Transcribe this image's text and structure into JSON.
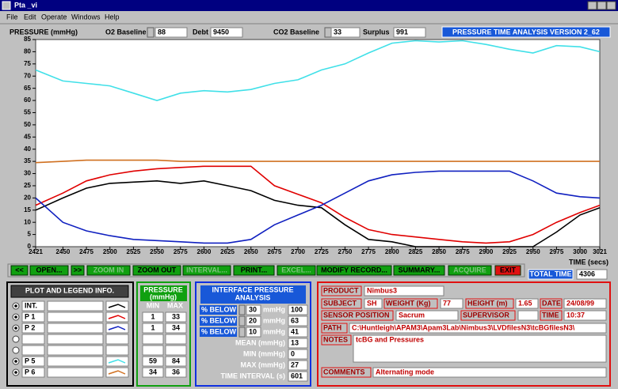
{
  "window_title": "Pta _vi",
  "menu": [
    "File",
    "Edit",
    "Operate",
    "Windows",
    "Help"
  ],
  "header": {
    "fields": [
      {
        "label": "O2 Baseline",
        "value": 88
      },
      {
        "label": "Debt",
        "value": 9450
      },
      {
        "label": "CO2 Baseline",
        "value": 33
      },
      {
        "label": "Surplus",
        "value": 991
      }
    ],
    "version": "PRESSURE TIME ANALYSIS VERSION 2_62"
  },
  "chart_data": {
    "type": "line",
    "y_label": "PRESSURE (mmHg)",
    "x_label": "TIME (secs)",
    "x": [
      2421,
      2450,
      2475,
      2500,
      2525,
      2550,
      2575,
      2600,
      2625,
      2650,
      2675,
      2700,
      2725,
      2750,
      2775,
      2800,
      2825,
      2850,
      2875,
      2900,
      2925,
      2950,
      2975,
      3000,
      3021
    ],
    "xlim": [
      2421,
      3021
    ],
    "ylim": [
      0,
      85
    ],
    "xticks": [
      2421,
      2450,
      2475,
      2500,
      2525,
      2550,
      2575,
      2600,
      2625,
      2650,
      2675,
      2700,
      2725,
      2750,
      2775,
      2800,
      2825,
      2850,
      2875,
      2900,
      2925,
      2950,
      2975,
      3000,
      3021
    ],
    "yticks": [
      0,
      5,
      10,
      15,
      20,
      25,
      30,
      35,
      40,
      45,
      50,
      55,
      60,
      65,
      70,
      75,
      80,
      85
    ],
    "grid": false,
    "series": [
      {
        "name": "INT.",
        "color": "#000000",
        "values": [
          15,
          20,
          24,
          26,
          26.5,
          27,
          26,
          27,
          25,
          23,
          19,
          17,
          16,
          9,
          3,
          2,
          0,
          0,
          0,
          0,
          0,
          0,
          6,
          13,
          16
        ]
      },
      {
        "name": "P 1",
        "color": "#e00000",
        "min": 1,
        "max": 33,
        "values": [
          17,
          22,
          27,
          29.5,
          31,
          32,
          32.5,
          33,
          33,
          33,
          25,
          21.5,
          18,
          12,
          7,
          5,
          4,
          3,
          2,
          1.5,
          2,
          5,
          10,
          14,
          17
        ]
      },
      {
        "name": "P 2",
        "color": "#1020c0",
        "min": 1,
        "max": 34,
        "values": [
          20,
          10,
          6.5,
          4.5,
          3,
          2.5,
          2,
          1.5,
          1.5,
          3,
          9,
          13,
          17,
          22,
          27,
          29.5,
          30.5,
          31,
          31,
          31,
          31,
          27,
          22,
          20.5,
          20
        ]
      },
      {
        "name": "P 5",
        "color": "#40e0e8",
        "min": 59,
        "max": 84,
        "values": [
          72.5,
          68,
          67,
          66,
          63,
          60,
          63,
          64,
          63.5,
          64.5,
          67,
          68.5,
          72.5,
          75,
          79.5,
          83.5,
          84.5,
          84,
          84.5,
          83,
          81,
          79.5,
          82.5,
          82,
          80
        ]
      },
      {
        "name": "P 6",
        "color": "#d07020",
        "min": 34,
        "max": 36,
        "values": [
          34.5,
          35,
          35.5,
          35.5,
          35.5,
          35.5,
          35,
          35,
          35,
          35,
          35,
          35,
          35,
          35,
          35,
          35,
          35,
          35,
          35,
          35,
          35,
          35,
          35,
          35,
          35
        ]
      }
    ]
  },
  "total_time": {
    "label": "TOTAL TIME",
    "value": 4306
  },
  "buttons": [
    {
      "label": "<<",
      "enabled": true
    },
    {
      "label": "OPEN...",
      "enabled": true
    },
    {
      "label": ">>",
      "enabled": true
    },
    {
      "label": "ZOOM IN",
      "enabled": false
    },
    {
      "label": "ZOOM OUT",
      "enabled": true
    },
    {
      "label": "INTERVAL...",
      "enabled": false
    },
    {
      "label": "PRINT...",
      "enabled": true
    },
    {
      "label": "EXCEL...",
      "enabled": false
    },
    {
      "label": "MODIFY RECORD...",
      "enabled": true
    },
    {
      "label": "SUMMARY...",
      "enabled": true
    },
    {
      "label": "ACQUIRE",
      "enabled": false
    },
    {
      "label": "EXIT",
      "enabled": true
    }
  ],
  "plot_panel": {
    "title": "PLOT AND LEGEND INFO."
  },
  "pressure_panel": {
    "title_lines": [
      "PRESSURE",
      "(mmHg)"
    ],
    "min_label": "MIN",
    "max_label": "MAX"
  },
  "interface_panel": {
    "title_lines": [
      "INTERFACE PRESSURE",
      "ANALYSIS"
    ],
    "below": [
      {
        "label": "% BELOW",
        "threshold": 30,
        "unit": "mmHg",
        "value": 100
      },
      {
        "label": "% BELOW",
        "threshold": 20,
        "unit": "mmHg",
        "value": 63
      },
      {
        "label": "% BELOW",
        "threshold": 10,
        "unit": "mmHg",
        "value": 41
      }
    ],
    "stats": [
      {
        "label": "MEAN (mmHg)",
        "value": 13
      },
      {
        "label": "MIN (mmHg)",
        "value": 0
      },
      {
        "label": "MAX (mmHg)",
        "value": 27
      },
      {
        "label": "TIME INTERVAL (s)",
        "value": 601
      }
    ]
  },
  "record": {
    "product": {
      "label": "PRODUCT",
      "value": "Nimbus3"
    },
    "subject": {
      "label": "SUBJECT",
      "value": "SH"
    },
    "weight": {
      "label": "WEIGHT (Kg)",
      "value": 77
    },
    "height": {
      "label": "HEIGHT (m)",
      "value": 1.65
    },
    "date": {
      "label": "DATE",
      "value": "24/08/99"
    },
    "sensor_position": {
      "label": "SENSOR POSITION",
      "value": "Sacrum"
    },
    "supervisor": {
      "label": "SUPERVISOR"
    },
    "time": {
      "label": "TIME",
      "value": "10:37"
    },
    "path": {
      "label": "PATH",
      "value": "C:\\Huntleigh\\APAM3\\Apam3Lab\\Nimbus3\\LVDfilesN3\\tcBGfilesN3\\"
    },
    "notes": {
      "label": "NOTES",
      "value": "tcBG and Pressures"
    },
    "comments": {
      "label": "COMMENTS",
      "value": "Alternating mode"
    }
  }
}
